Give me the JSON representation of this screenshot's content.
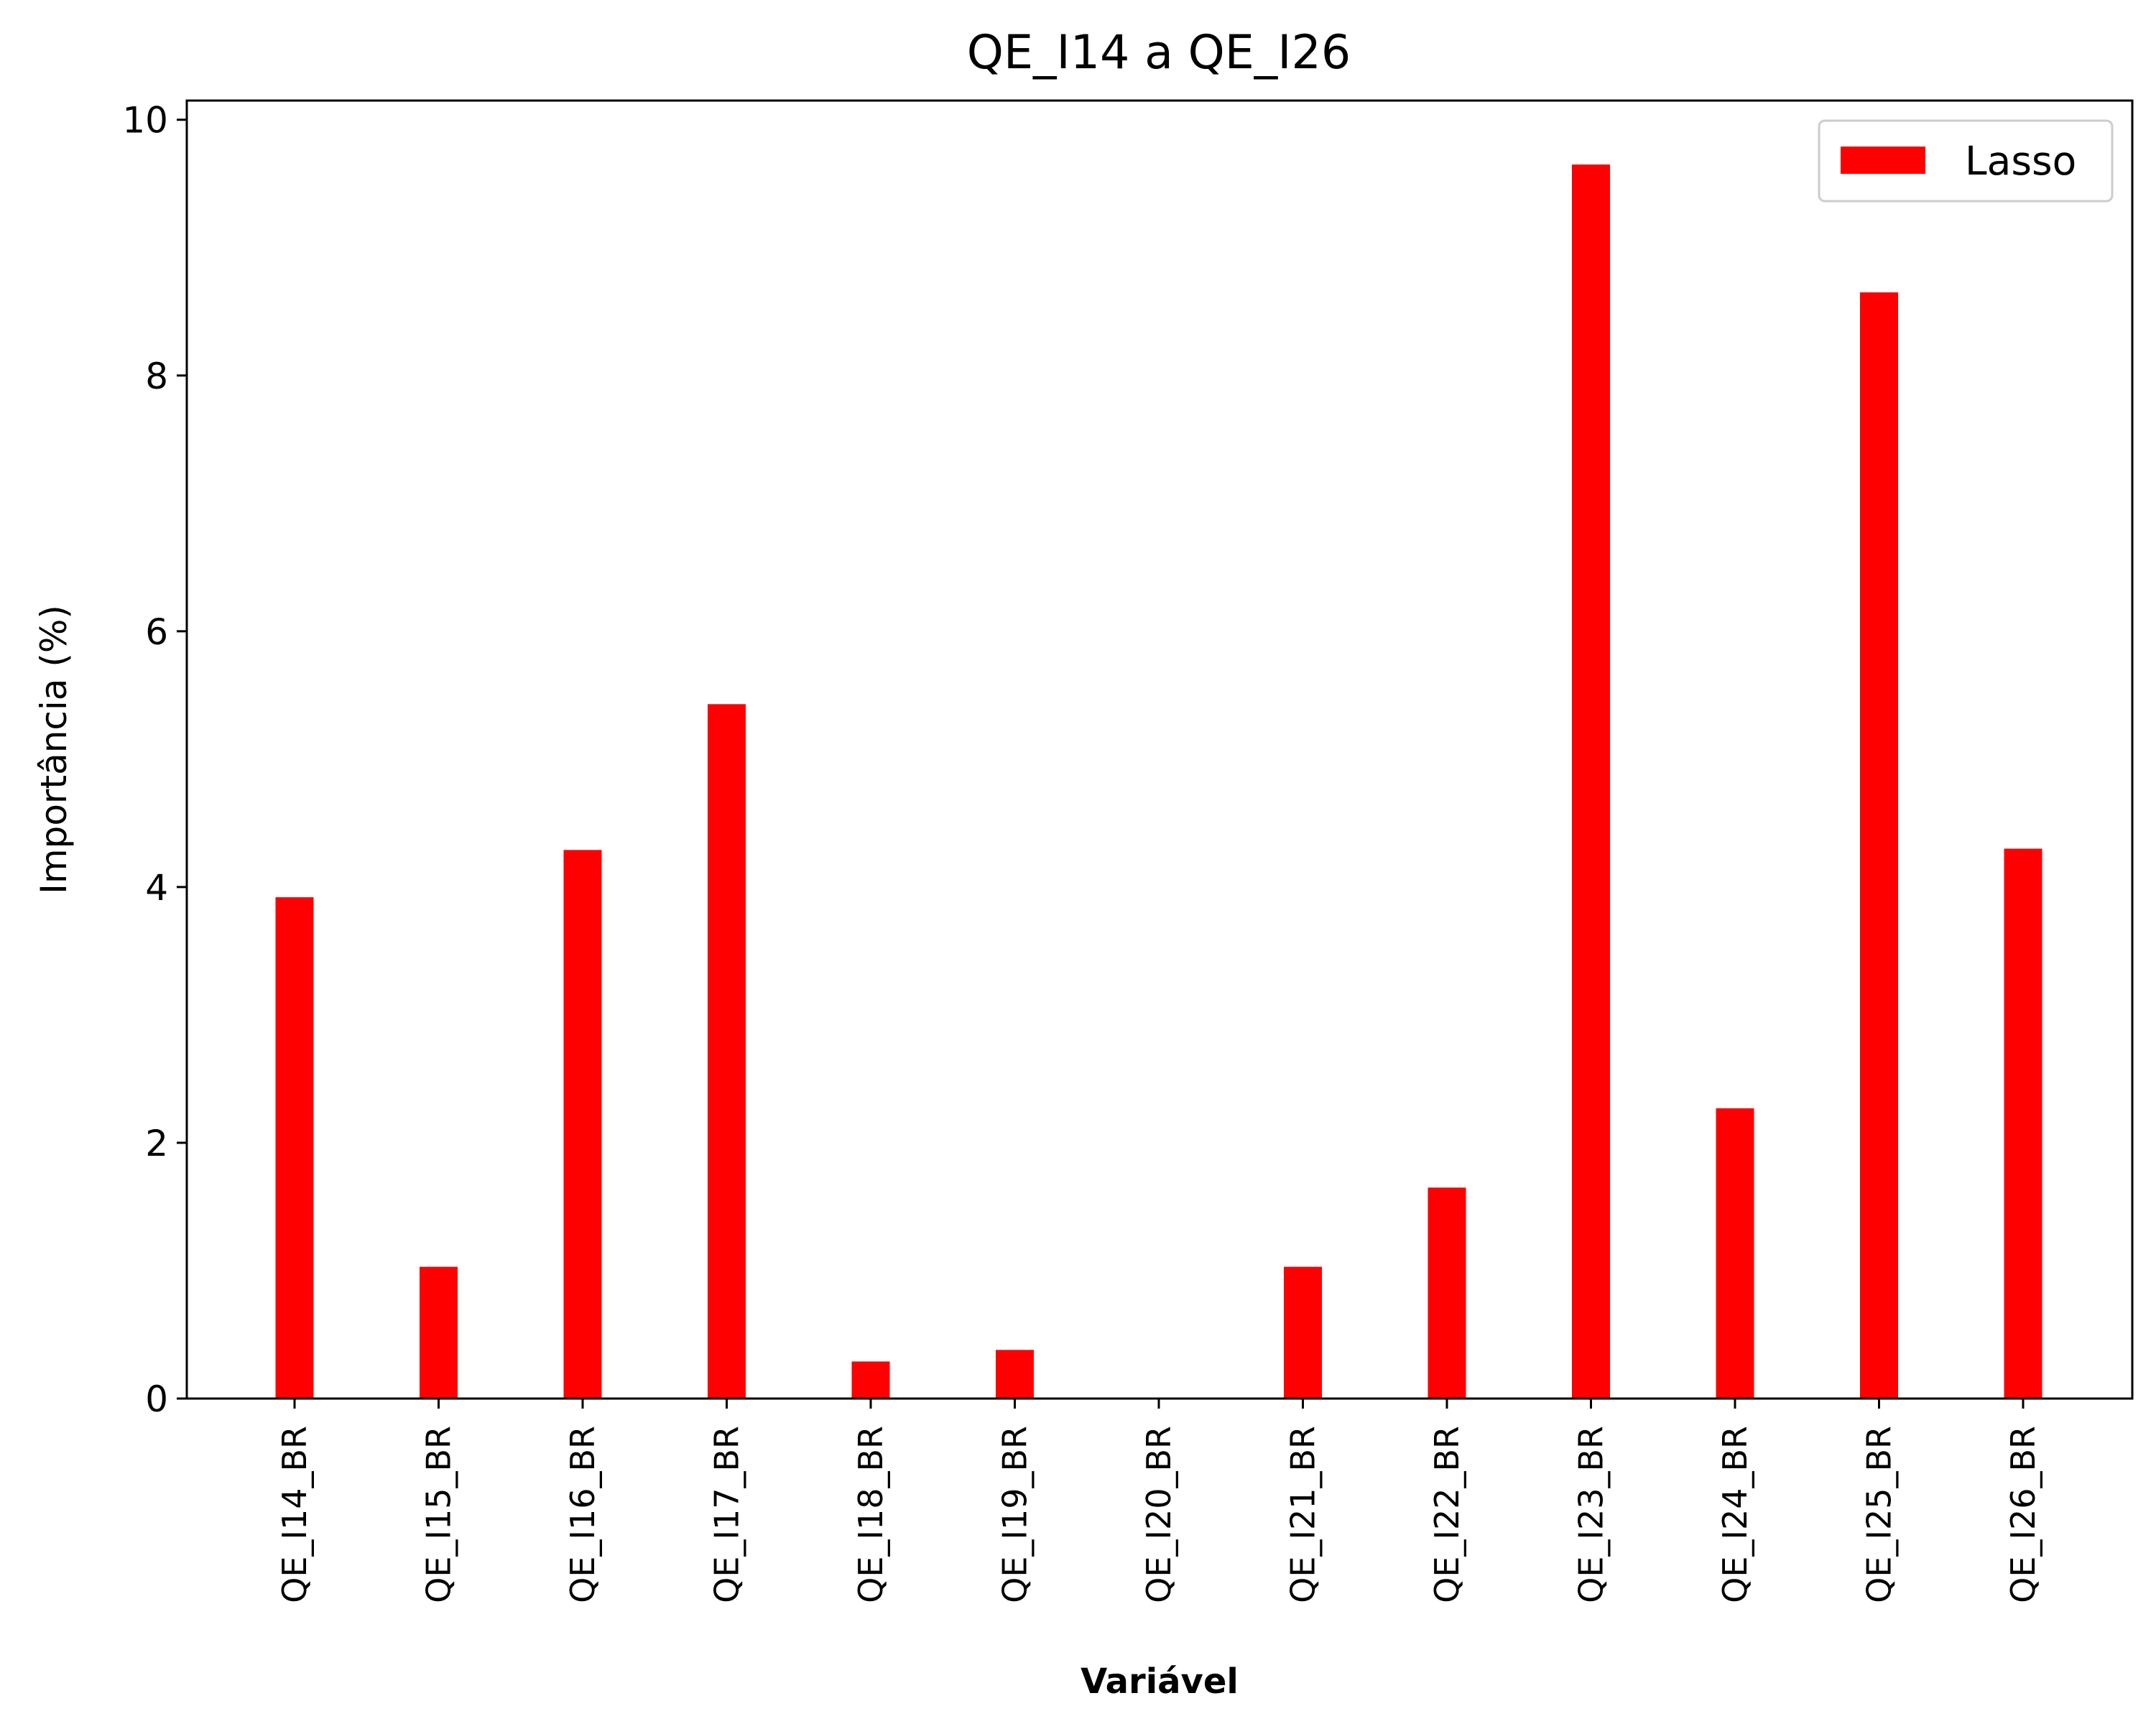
{
  "chart_data": {
    "type": "bar",
    "title": "QE_I14 a QE_I26",
    "xlabel": "Variável",
    "ylabel": "Importância (%)",
    "categories": [
      "QE_I14_BR",
      "QE_I15_BR",
      "QE_I16_BR",
      "QE_I17_BR",
      "QE_I18_BR",
      "QE_I19_BR",
      "QE_I20_BR",
      "QE_I21_BR",
      "QE_I22_BR",
      "QE_I23_BR",
      "QE_I24_BR",
      "QE_I25_BR",
      "QE_I26_BR"
    ],
    "series": [
      {
        "name": "Lasso",
        "color": "#ff0000",
        "values": [
          3.92,
          1.03,
          4.29,
          5.43,
          0.29,
          0.38,
          0.0,
          1.03,
          1.65,
          9.65,
          2.27,
          8.65,
          4.3
        ]
      }
    ],
    "ylim": [
      0,
      10.15
    ],
    "yticks": [
      0,
      2,
      4,
      6,
      8,
      10
    ],
    "ytick_labels": [
      "0",
      "2",
      "4",
      "6",
      "8",
      "10"
    ],
    "grid": false,
    "legend_position": "top-right"
  }
}
